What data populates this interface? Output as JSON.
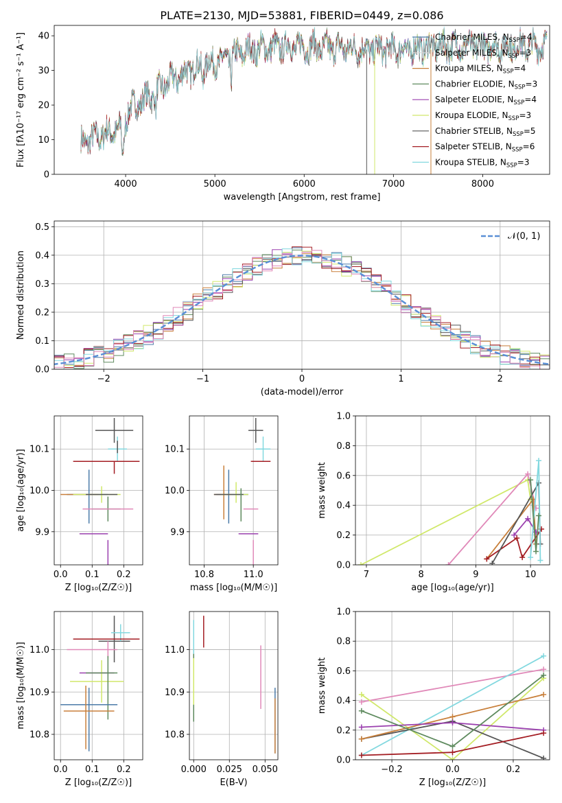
{
  "figure_title": "PLATE=2130, MJD=53881, FIBERID=0449, z=0.086",
  "model_colors": [
    "#4a7aa8",
    "#d8d8d8",
    "#c87f3a",
    "#5e8a5e",
    "#9a3fae",
    "#d0e86a",
    "#555555",
    "#a31c22",
    "#82d8df"
  ],
  "chart_data": [
    {
      "id": "spectrum",
      "type": "line",
      "title": "PLATE=2130, MJD=53881, FIBERID=0449, z=0.086",
      "xlabel": "wavelength [Angstrom, rest frame]",
      "ylabel": "Flux [fλ10⁻¹⁷ erg cm⁻² s⁻¹ A⁻¹]",
      "xlim": [
        3200,
        8750
      ],
      "ylim": [
        0,
        43
      ],
      "xticks": [
        4000,
        5000,
        6000,
        7000,
        8000
      ],
      "yticks": [
        0,
        10,
        20,
        30,
        40
      ],
      "grid": false,
      "legend_position": "top-right",
      "legend": [
        {
          "label": "Chabrier MILES, N",
          "sub": "SSP",
          "suffix": "=4",
          "color": "#4a7aa8"
        },
        {
          "label": "Salpeter MILES, N",
          "sub": "SSP",
          "suffix": "=3",
          "color": "#d8d8d8"
        },
        {
          "label": "Kroupa MILES, N",
          "sub": "SSP",
          "suffix": "=4",
          "color": "#c87f3a"
        },
        {
          "label": "Chabrier ELODIE, N",
          "sub": "SSP",
          "suffix": "=3",
          "color": "#5e8a5e"
        },
        {
          "label": "Salpeter ELODIE, N",
          "sub": "SSP",
          "suffix": "=4",
          "color": "#9a3fae"
        },
        {
          "label": "Kroupa ELODIE, N",
          "sub": "SSP",
          "suffix": "=3",
          "color": "#d0e86a"
        },
        {
          "label": "Chabrier STELIB, N",
          "sub": "SSP",
          "suffix": "=5",
          "color": "#555555"
        },
        {
          "label": "Salpeter STELIB, N",
          "sub": "SSP",
          "suffix": "=6",
          "color": "#a31c22"
        },
        {
          "label": "Kroupa STELIB, N",
          "sub": "SSP",
          "suffix": "=3",
          "color": "#82d8df"
        }
      ],
      "continuum": {
        "x": [
          3500,
          3800,
          3950,
          4050,
          4300,
          4500,
          4800,
          5100,
          5400,
          5800,
          6300,
          6800,
          7100,
          7500,
          8000,
          8500,
          8700
        ],
        "y": [
          9,
          12,
          13,
          19,
          23,
          27,
          31,
          33,
          36,
          37,
          36.5,
          36,
          36,
          37,
          37,
          37,
          37
        ]
      },
      "x_start": 3500,
      "x_end": 8720
    },
    {
      "id": "residuals",
      "type": "line",
      "xlabel": "(data-model)/error",
      "ylabel": "Normed distribution",
      "xlim": [
        -2.5,
        2.5
      ],
      "ylim": [
        0,
        0.52
      ],
      "xticks": [
        -2,
        -1,
        0,
        1,
        2
      ],
      "yticks": [
        0.0,
        0.1,
        0.2,
        0.3,
        0.4,
        0.5
      ],
      "grid": true,
      "legend_position": "top-right",
      "legend": [
        {
          "label": "𝒩(0, 1)",
          "color": "#5a8fd6",
          "style": "dashed"
        }
      ],
      "normal_curve": {
        "mu": 0,
        "sigma": 1
      }
    },
    {
      "id": "age_vs_Z",
      "type": "scatter",
      "xlabel": "Z [log₁₀(Z/Z☉)]",
      "ylabel": "age  [log₁₀(age/yr)]",
      "xlim": [
        -0.02,
        0.26
      ],
      "ylim": [
        9.82,
        10.18
      ],
      "xticks": [
        0.0,
        0.1,
        0.2
      ],
      "yticks": [
        9.9,
        10.0,
        10.1
      ],
      "grid": true,
      "points": [
        {
          "x": 0.17,
          "y": 10.145,
          "xerr": [
            0.06,
            0.06
          ],
          "yerr": [
            0.03,
            0.03
          ],
          "color": "#555555"
        },
        {
          "x": 0.18,
          "y": 10.1,
          "xerr": [
            0.03,
            0.03
          ],
          "yerr": [
            0.03,
            0.03
          ],
          "color": "#82d8df"
        },
        {
          "x": 0.17,
          "y": 10.07,
          "xerr": [
            0.13,
            0.08
          ],
          "yerr": [
            0.03,
            0.0
          ],
          "color": "#a31c22"
        },
        {
          "x": 0.09,
          "y": 9.99,
          "xerr": [
            0.07,
            0.06
          ],
          "yerr": [
            0.07,
            0.06
          ],
          "color": "#4a7aa8"
        },
        {
          "x": 0.09,
          "y": 9.99,
          "xerr": [
            0.09,
            0.03
          ],
          "yerr": [
            0.0,
            0.0
          ],
          "color": "#c87f3a"
        },
        {
          "x": 0.13,
          "y": 9.99,
          "xerr": [
            0.09,
            0.06
          ],
          "yerr": [
            0.02,
            0.02
          ],
          "color": "#d0e86a"
        },
        {
          "x": 0.14,
          "y": 9.99,
          "xerr": [
            0.06,
            0.04
          ],
          "yerr": [
            0.0,
            0.0
          ],
          "color": "#555555"
        },
        {
          "x": 0.15,
          "y": 9.955,
          "xerr": [
            0.05,
            0.04
          ],
          "yerr": [
            0.03,
            0.03
          ],
          "color": "#5e8a5e"
        },
        {
          "x": 0.17,
          "y": 9.955,
          "xerr": [
            0.1,
            0.06
          ],
          "yerr": [
            0.0,
            0.0
          ],
          "color": "#e088b8"
        },
        {
          "x": 0.12,
          "y": 9.895,
          "xerr": [
            0.06,
            0.03
          ],
          "yerr": [
            0.0,
            0.0
          ],
          "color": "#9a3fae"
        },
        {
          "x": 0.15,
          "y": 9.88,
          "xerr": [
            0.0,
            0.0
          ],
          "yerr": [
            0.06,
            0.0
          ],
          "color": "#9a3fae"
        },
        {
          "x": 0.18,
          "y": 10.12,
          "xerr": [
            0.0,
            0.0
          ],
          "yerr": [
            0.03,
            0.0
          ],
          "color": "#555555"
        }
      ]
    },
    {
      "id": "age_vs_mass",
      "type": "scatter",
      "xlabel": "mass [log₁₀(M/M☉)]",
      "ylabel": "",
      "xlim": [
        10.74,
        11.1
      ],
      "ylim": [
        9.82,
        10.18
      ],
      "xticks": [
        10.8,
        11.0
      ],
      "yticks": [
        9.9,
        10.0,
        10.1
      ],
      "grid": true,
      "points": [
        {
          "x": 11.01,
          "y": 10.145,
          "xerr": [
            0.03,
            0.03
          ],
          "yerr": [
            0.03,
            0.03
          ],
          "color": "#555555"
        },
        {
          "x": 11.04,
          "y": 10.1,
          "xerr": [
            0.03,
            0.03
          ],
          "yerr": [
            0.03,
            0.03
          ],
          "color": "#82d8df"
        },
        {
          "x": 11.03,
          "y": 10.07,
          "xerr": [
            0.04,
            0.04
          ],
          "yerr": [
            0.0,
            0.0
          ],
          "color": "#a31c22"
        },
        {
          "x": 10.9,
          "y": 9.99,
          "xerr": [
            0.05,
            0.08
          ],
          "yerr": [
            0.07,
            0.06
          ],
          "color": "#4a7aa8"
        },
        {
          "x": 10.88,
          "y": 9.99,
          "xerr": [
            0.04,
            0.03
          ],
          "yerr": [
            0.06,
            0.07
          ],
          "color": "#c87f3a"
        },
        {
          "x": 10.93,
          "y": 9.99,
          "xerr": [
            0.06,
            0.05
          ],
          "yerr": [
            0.02,
            0.03
          ],
          "color": "#d0e86a"
        },
        {
          "x": 10.94,
          "y": 9.99,
          "xerr": [
            0.1,
            0.02
          ],
          "yerr": [
            0.0,
            0.0
          ],
          "color": "#555555"
        },
        {
          "x": 10.95,
          "y": 9.955,
          "xerr": [
            0.0,
            0.0
          ],
          "yerr": [
            0.03,
            0.05
          ],
          "color": "#5e8a5e"
        },
        {
          "x": 11.0,
          "y": 9.955,
          "xerr": [
            0.04,
            0.02
          ],
          "yerr": [
            0.0,
            0.0
          ],
          "color": "#e088b8"
        },
        {
          "x": 10.98,
          "y": 9.895,
          "xerr": [
            0.04,
            0.04
          ],
          "yerr": [
            0.0,
            0.0
          ],
          "color": "#9a3fae"
        },
        {
          "x": 11.0,
          "y": 9.88,
          "xerr": [
            0.0,
            0.0
          ],
          "yerr": [
            0.06,
            0.0
          ],
          "color": "#e088b8"
        }
      ]
    },
    {
      "id": "massweight_vs_age",
      "type": "line",
      "xlabel": "age  [log₁₀(age/yr)]",
      "ylabel": "mass weight",
      "xlim": [
        6.8,
        10.35
      ],
      "ylim": [
        0,
        1.0
      ],
      "xticks": [
        7,
        8,
        9,
        10
      ],
      "yticks": [
        0.0,
        0.2,
        0.4,
        0.6,
        0.8,
        1.0
      ],
      "grid": true,
      "series": [
        {
          "color": "#d0e86a",
          "x": [
            6.9,
            9.95,
            10.0
          ],
          "y": [
            0.0,
            0.57,
            0.44
          ]
        },
        {
          "color": "#e088b8",
          "x": [
            8.5,
            9.95,
            10.1
          ],
          "y": [
            0.0,
            0.61,
            0.38
          ]
        },
        {
          "color": "#c87f3a",
          "x": [
            9.2,
            10.05,
            10.1
          ],
          "y": [
            0.04,
            0.44,
            0.14
          ]
        },
        {
          "color": "#a31c22",
          "x": [
            9.2,
            9.75,
            9.85,
            10.2
          ],
          "y": [
            0.04,
            0.18,
            0.05,
            0.24
          ]
        },
        {
          "color": "#555555",
          "x": [
            9.3,
            10.15,
            10.18
          ],
          "y": [
            0.01,
            0.55,
            0.14
          ]
        },
        {
          "color": "#9a3fae",
          "x": [
            9.7,
            9.95,
            10.1
          ],
          "y": [
            0.2,
            0.31,
            0.22
          ]
        },
        {
          "color": "#82d8df",
          "x": [
            10.0,
            10.15,
            10.18
          ],
          "y": [
            0.05,
            0.7,
            0.03
          ]
        },
        {
          "color": "#5e8a5e",
          "x": [
            10.0,
            10.1,
            10.15
          ],
          "y": [
            0.57,
            0.09,
            0.33
          ]
        }
      ]
    },
    {
      "id": "mass_vs_Z",
      "type": "scatter",
      "xlabel": "Z [log₁₀(Z/Z☉)]",
      "ylabel": "mass [log₁₀(M/M☉)]",
      "xlim": [
        -0.02,
        0.26
      ],
      "ylim": [
        10.74,
        11.09
      ],
      "xticks": [
        0.0,
        0.1,
        0.2
      ],
      "yticks": [
        10.8,
        10.9,
        11.0
      ],
      "grid": true,
      "points": [
        {
          "x": 0.17,
          "y": 11.02,
          "xerr": [
            0.05,
            0.05
          ],
          "yerr": [
            0.05,
            0.06
          ],
          "color": "#555555"
        },
        {
          "x": 0.19,
          "y": 11.04,
          "xerr": [
            0.03,
            0.03
          ],
          "yerr": [
            0.02,
            0.02
          ],
          "color": "#82d8df"
        },
        {
          "x": 0.17,
          "y": 11.025,
          "xerr": [
            0.13,
            0.08
          ],
          "yerr": [
            0.0,
            0.0
          ],
          "color": "#a31c22"
        },
        {
          "x": 0.15,
          "y": 11.0,
          "xerr": [
            0.13,
            0.03
          ],
          "yerr": [
            0.02,
            0.02
          ],
          "color": "#e088b8"
        },
        {
          "x": 0.12,
          "y": 10.945,
          "xerr": [
            0.06,
            0.05
          ],
          "yerr": [
            0.0,
            0.0
          ],
          "color": "#9a3fae"
        },
        {
          "x": 0.13,
          "y": 10.925,
          "xerr": [
            0.1,
            0.07
          ],
          "yerr": [
            0.05,
            0.05
          ],
          "color": "#d0e86a"
        },
        {
          "x": 0.15,
          "y": 10.945,
          "xerr": [
            0.07,
            0.03
          ],
          "yerr": [
            0.11,
            0.04
          ],
          "color": "#5e8a5e"
        },
        {
          "x": 0.09,
          "y": 10.87,
          "xerr": [
            0.09,
            0.09
          ],
          "yerr": [
            0.11,
            0.04
          ],
          "color": "#4a7aa8"
        },
        {
          "x": 0.08,
          "y": 10.855,
          "xerr": [
            0.07,
            0.09
          ],
          "yerr": [
            0.09,
            0.06
          ],
          "color": "#c87f3a"
        }
      ]
    },
    {
      "id": "mass_vs_ebv",
      "type": "scatter",
      "xlabel": "E(B-V)",
      "ylabel": "",
      "xlim": [
        -0.003,
        0.059
      ],
      "ylim": [
        10.74,
        11.09
      ],
      "xticks": [
        0.0,
        0.025,
        0.05
      ],
      "yticks": [
        10.8,
        10.9,
        11.0
      ],
      "grid": true,
      "points": [
        {
          "x": 0.007,
          "y": 11.04,
          "xerr": [
            0.0,
            0.0
          ],
          "yerr": [
            0.035,
            0.04
          ],
          "color": "#a31c22"
        },
        {
          "x": 0.0,
          "y": 11.03,
          "xerr": [
            0.0,
            0.0
          ],
          "yerr": [
            0.04,
            0.04
          ],
          "color": "#82d8df"
        },
        {
          "x": 0.0,
          "y": 10.94,
          "xerr": [
            0.0,
            0.0
          ],
          "yerr": [
            0.11,
            0.05
          ],
          "color": "#5e8a5e"
        },
        {
          "x": 0.0,
          "y": 10.92,
          "xerr": [
            0.0,
            0.0
          ],
          "yerr": [
            0.05,
            0.06
          ],
          "color": "#d0e86a"
        },
        {
          "x": 0.047,
          "y": 10.935,
          "xerr": [
            0.0,
            0.0
          ],
          "yerr": [
            0.075,
            0.075
          ],
          "color": "#e088b8"
        },
        {
          "x": 0.057,
          "y": 10.83,
          "xerr": [
            0.0,
            0.0
          ],
          "yerr": [
            0.075,
            0.08
          ],
          "color": "#4a7aa8"
        },
        {
          "x": 0.057,
          "y": 10.82,
          "xerr": [
            0.0,
            0.0
          ],
          "yerr": [
            0.065,
            0.065
          ],
          "color": "#c87f3a"
        }
      ]
    },
    {
      "id": "massweight_vs_Z",
      "type": "line",
      "xlabel": "Z [log₁₀(Z/Z☉)]",
      "ylabel": "mass weight",
      "xlim": [
        -0.32,
        0.32
      ],
      "ylim": [
        0,
        1.0
      ],
      "xticks": [
        -0.2,
        0.0,
        0.2
      ],
      "yticks": [
        0.0,
        0.2,
        0.4,
        0.6,
        0.8,
        1.0
      ],
      "grid": true,
      "series": [
        {
          "color": "#e088b8",
          "x": [
            -0.3,
            0.3
          ],
          "y": [
            0.39,
            0.61
          ]
        },
        {
          "color": "#82d8df",
          "x": [
            -0.3,
            0.3
          ],
          "y": [
            0.03,
            0.7
          ]
        },
        {
          "color": "#d0e86a",
          "x": [
            -0.3,
            0.0,
            0.3
          ],
          "y": [
            0.44,
            0.0,
            0.55
          ]
        },
        {
          "color": "#555555",
          "x": [
            -0.3,
            0.0,
            0.3
          ],
          "y": [
            0.14,
            0.26,
            0.01
          ]
        },
        {
          "color": "#c87f3a",
          "x": [
            -0.3,
            0.0,
            0.3
          ],
          "y": [
            0.14,
            0.29,
            0.44
          ]
        },
        {
          "color": "#9a3fae",
          "x": [
            -0.3,
            0.0,
            0.3
          ],
          "y": [
            0.22,
            0.25,
            0.2
          ]
        },
        {
          "color": "#5e8a5e",
          "x": [
            -0.3,
            0.0,
            0.3
          ],
          "y": [
            0.33,
            0.09,
            0.57
          ]
        },
        {
          "color": "#a31c22",
          "x": [
            -0.3,
            0.0,
            0.3
          ],
          "y": [
            0.03,
            0.05,
            0.18
          ]
        }
      ]
    }
  ]
}
